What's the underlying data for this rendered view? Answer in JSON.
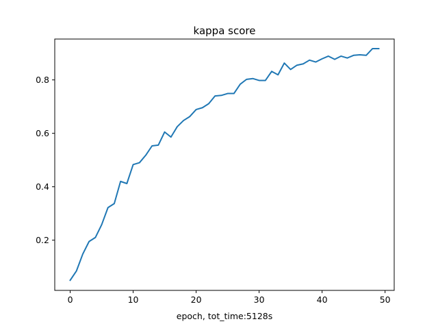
{
  "chart_data": {
    "type": "line",
    "title": "kappa score",
    "xlabel": "epoch, tot_time:5128s",
    "ylabel": "",
    "xlim": [
      -2.45,
      51.45
    ],
    "ylim": [
      0.012,
      0.953
    ],
    "xticks": [
      0,
      10,
      20,
      30,
      40,
      50
    ],
    "yticks": [
      0.2,
      0.4,
      0.6,
      0.8
    ],
    "xtick_labels": [
      "0",
      "10",
      "20",
      "30",
      "40",
      "50"
    ],
    "ytick_labels": [
      "0.2",
      "0.4",
      "0.6",
      "0.8"
    ],
    "grid": false,
    "legend": "none",
    "series": [
      {
        "color": "#1f77b4",
        "x": [
          0,
          1,
          2,
          3,
          4,
          5,
          6,
          7,
          8,
          9,
          10,
          11,
          12,
          13,
          14,
          15,
          16,
          17,
          18,
          19,
          20,
          21,
          22,
          23,
          24,
          25,
          26,
          27,
          28,
          29,
          30,
          31,
          32,
          33,
          34,
          35,
          36,
          37,
          38,
          39,
          40,
          41,
          42,
          43,
          44,
          45,
          46,
          47,
          48,
          49
        ],
        "values": [
          0.05,
          0.085,
          0.148,
          0.195,
          0.21,
          0.258,
          0.322,
          0.337,
          0.42,
          0.412,
          0.483,
          0.49,
          0.518,
          0.553,
          0.556,
          0.605,
          0.586,
          0.625,
          0.648,
          0.663,
          0.689,
          0.696,
          0.711,
          0.74,
          0.742,
          0.749,
          0.749,
          0.784,
          0.802,
          0.805,
          0.798,
          0.798,
          0.832,
          0.819,
          0.863,
          0.839,
          0.855,
          0.86,
          0.874,
          0.867,
          0.879,
          0.889,
          0.877,
          0.889,
          0.882,
          0.892,
          0.894,
          0.892,
          0.917,
          0.917
        ]
      }
    ]
  }
}
